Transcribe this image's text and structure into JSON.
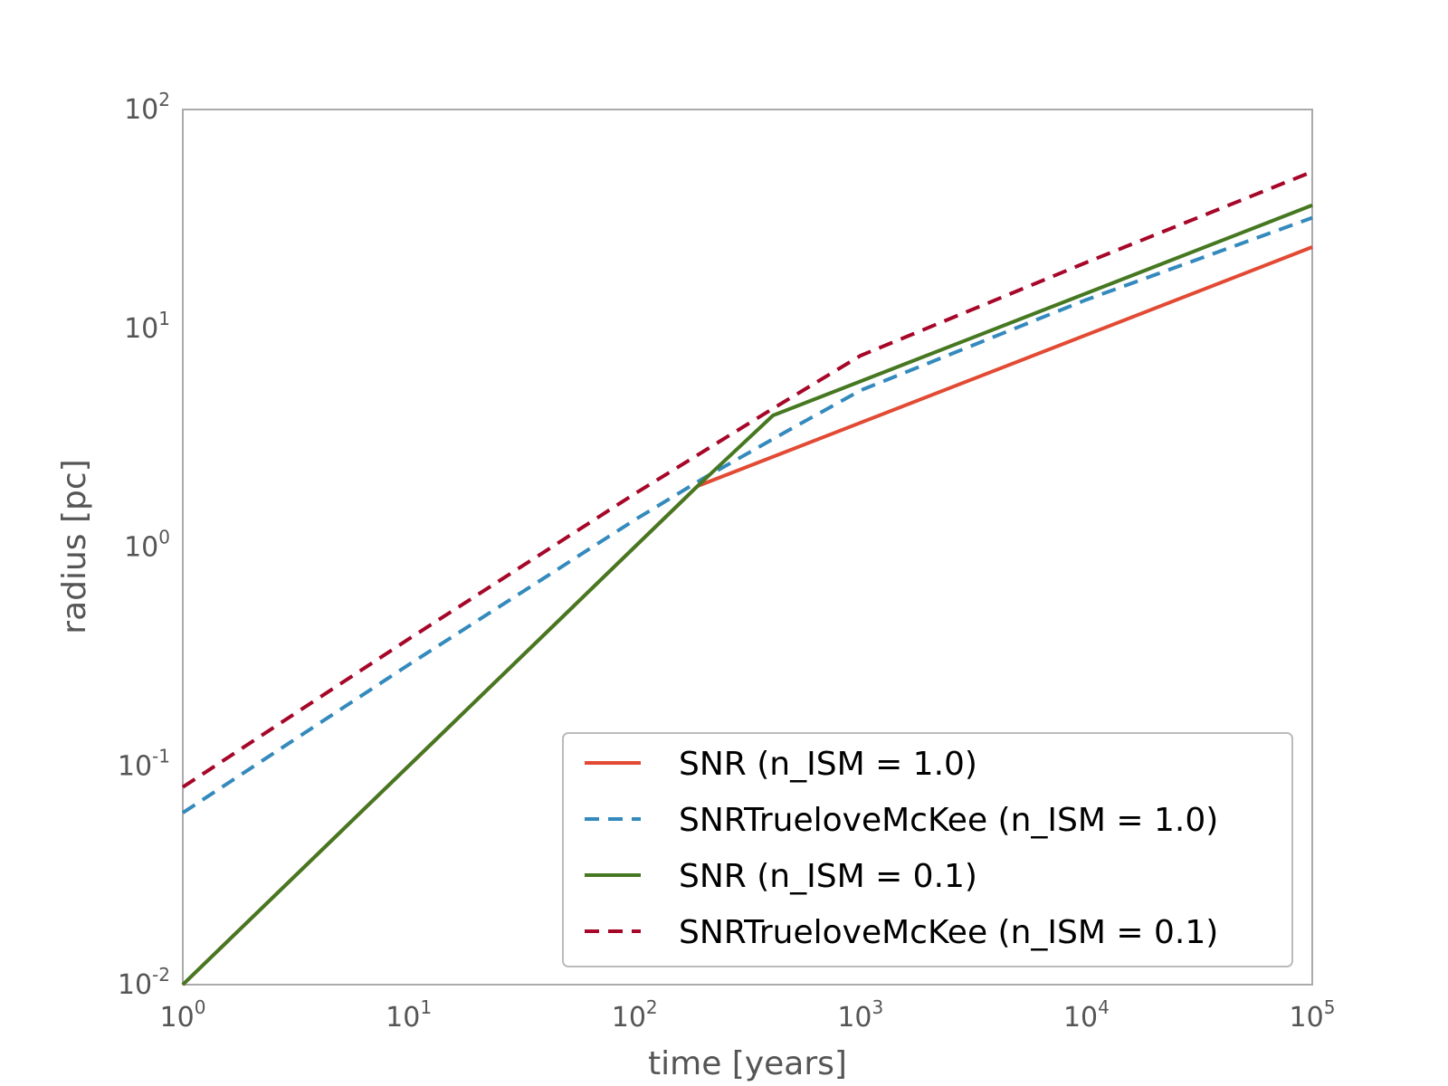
{
  "chart_data": {
    "type": "line",
    "title": "",
    "xlabel": "time [years]",
    "ylabel": "radius [pc]",
    "xscale": "log",
    "yscale": "log",
    "xlim": [
      1,
      100000
    ],
    "ylim": [
      0.01,
      100
    ],
    "x_ticks": [
      {
        "base": "10",
        "exp": "0",
        "value": 1
      },
      {
        "base": "10",
        "exp": "1",
        "value": 10
      },
      {
        "base": "10",
        "exp": "2",
        "value": 100
      },
      {
        "base": "10",
        "exp": "3",
        "value": 1000
      },
      {
        "base": "10",
        "exp": "4",
        "value": 10000
      },
      {
        "base": "10",
        "exp": "5",
        "value": 100000
      }
    ],
    "y_ticks": [
      {
        "base": "10",
        "exp": "-2",
        "value": 0.01
      },
      {
        "base": "10",
        "exp": "-1",
        "value": 0.1
      },
      {
        "base": "10",
        "exp": "0",
        "value": 1
      },
      {
        "base": "10",
        "exp": "1",
        "value": 10
      },
      {
        "base": "10",
        "exp": "2",
        "value": 100
      }
    ],
    "grid": false,
    "legend_position": "lower-right",
    "series": [
      {
        "name": "SNR (n_ISM = 1.0)",
        "color": "#e24a33",
        "dash": "solid",
        "x": [
          1,
          190,
          100000
        ],
        "y": [
          0.01,
          1.9,
          23.5
        ]
      },
      {
        "name": "SNRTrueloveMcKee (n_ISM = 1.0)",
        "color": "#348abd",
        "dash": "dashed",
        "x": [
          1,
          10,
          100,
          200,
          500,
          1000,
          10000,
          100000
        ],
        "y": [
          0.061,
          0.29,
          1.33,
          2.05,
          3.5,
          5.2,
          13.5,
          32.0
        ]
      },
      {
        "name": "SNR (n_ISM = 0.1)",
        "color": "#467821",
        "dash": "solid",
        "x": [
          1,
          190,
          410,
          100000
        ],
        "y": [
          0.01,
          1.9,
          4.0,
          36.5
        ]
      },
      {
        "name": "SNRTrueloveMcKee (n_ISM = 0.1)",
        "color": "#a60628",
        "dash": "dashed",
        "x": [
          1,
          10,
          100,
          410,
          1000,
          10000,
          100000
        ],
        "y": [
          0.08,
          0.38,
          1.75,
          4.3,
          7.5,
          20.0,
          52.0
        ]
      }
    ]
  }
}
